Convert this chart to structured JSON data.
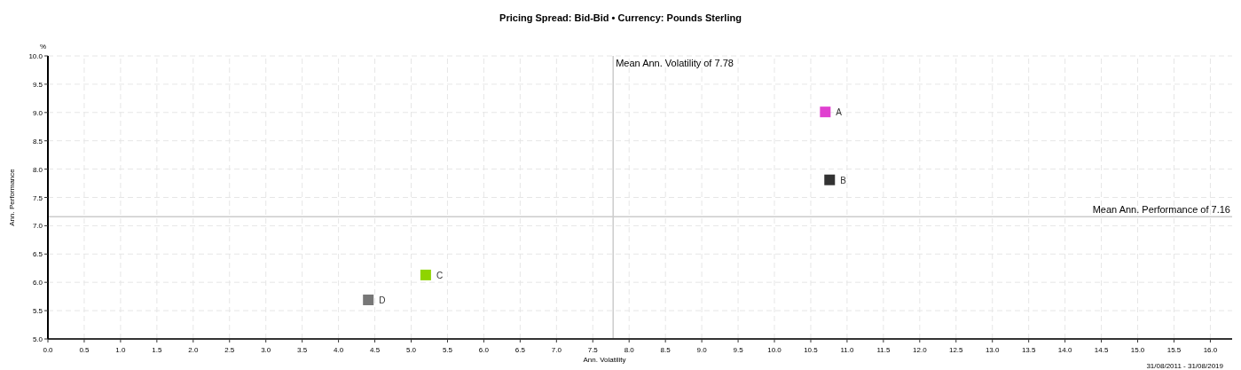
{
  "chart_data": {
    "type": "scatter",
    "title": "Pricing Spread: Bid-Bid • Currency: Pounds Sterling",
    "xlabel": "Ann. Volatility",
    "ylabel": "Ann. Performance",
    "annotations": [
      "%",
      "31/08/2011 - 31/08/2019"
    ],
    "marker": "square",
    "grid": true,
    "xlim": [
      0,
      16.3
    ],
    "ylim": [
      5,
      10
    ],
    "xticks": [
      {
        "value": 0,
        "label": "0.0"
      },
      0.5,
      {
        "value": 1,
        "label": "1.0"
      },
      1.5,
      {
        "value": 2,
        "label": "2.0"
      },
      2.5,
      {
        "value": 3,
        "label": "3.0"
      },
      3.5,
      {
        "value": 4,
        "label": "4.0"
      },
      4.5,
      {
        "value": 5,
        "label": "5.0"
      },
      5.5,
      {
        "value": 6,
        "label": "6.0"
      },
      6.5,
      {
        "value": 7,
        "label": "7.0"
      },
      7.5,
      {
        "value": 8,
        "label": "8.0"
      },
      8.5,
      {
        "value": 9,
        "label": "9.0"
      },
      9.5,
      {
        "value": 10,
        "label": "10.0"
      },
      10.5,
      {
        "value": 11,
        "label": "11.0"
      },
      11.5,
      {
        "value": 12,
        "label": "12.0"
      },
      12.5,
      {
        "value": 13,
        "label": "13.0"
      },
      13.5,
      {
        "value": 14,
        "label": "14.0"
      },
      14.5,
      {
        "value": 15,
        "label": "15.0"
      },
      15.5,
      {
        "value": 16,
        "label": "16.0"
      }
    ],
    "yticks": [
      {
        "value": 5,
        "label": "5.0"
      },
      5.5,
      {
        "value": 6,
        "label": "6.0"
      },
      6.5,
      {
        "value": 7,
        "label": "7.0"
      },
      7.5,
      {
        "value": 8,
        "label": "8.0"
      },
      8.5,
      {
        "value": 9,
        "label": "9.0"
      },
      9.5,
      {
        "value": 10,
        "label": "10.0"
      }
    ],
    "ref_lines": [
      {
        "axis": "x",
        "value": 7.78,
        "label": "Mean Ann. Volatility of 7.78",
        "color": "#cccccc"
      },
      {
        "axis": "y",
        "value": 7.16,
        "label": "Mean Ann. Performance of 7.16",
        "color": "#cccccc"
      }
    ],
    "series": [
      {
        "name": "A",
        "color": "#e040d0",
        "x": [
          10.7
        ],
        "values": [
          9.01
        ]
      },
      {
        "name": "B",
        "color": "#333333",
        "x": [
          10.76
        ],
        "values": [
          7.81
        ]
      },
      {
        "name": "C",
        "color": "#8fd400",
        "x": [
          5.2
        ],
        "values": [
          6.13
        ]
      },
      {
        "name": "D",
        "color": "#777777",
        "x": [
          4.41
        ],
        "values": [
          5.69
        ]
      }
    ]
  }
}
